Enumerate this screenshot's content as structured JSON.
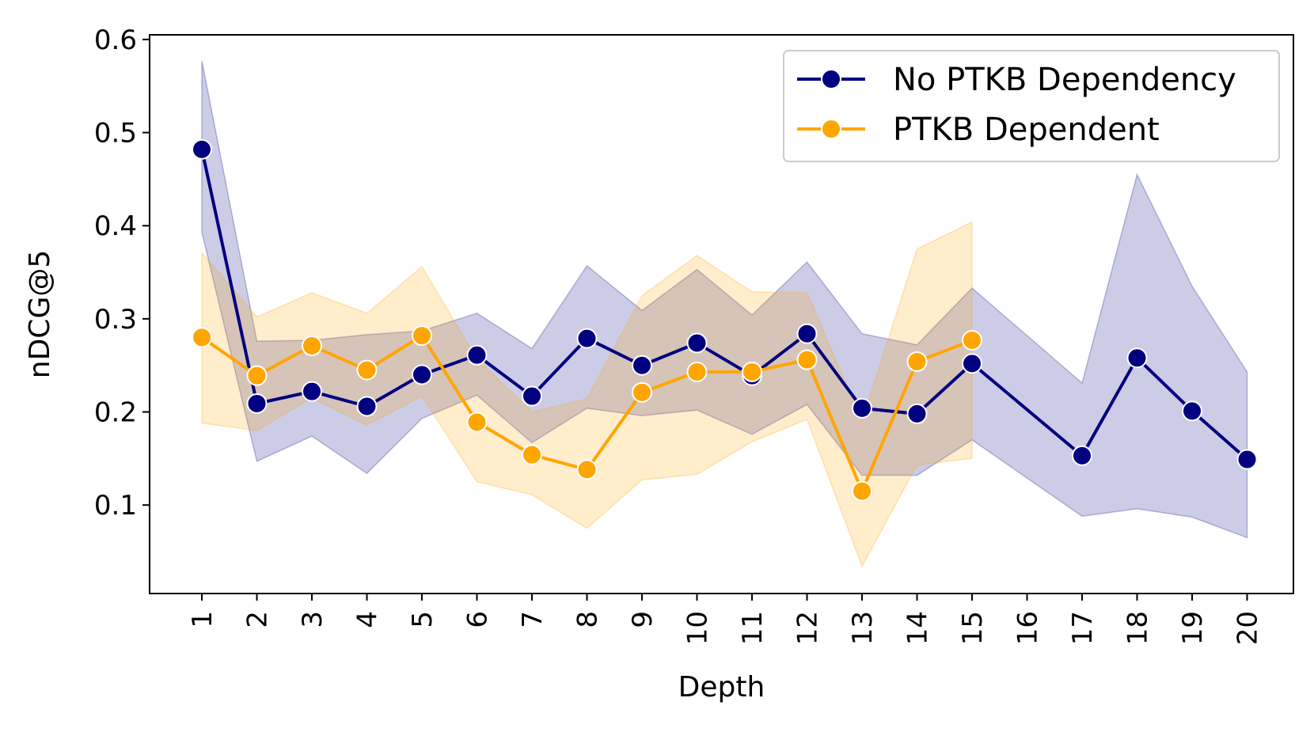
{
  "chart_data": {
    "type": "line",
    "title": "",
    "xlabel": "Depth",
    "ylabel": "nDCG@5",
    "categories": [
      "1",
      "2",
      "3",
      "4",
      "5",
      "6",
      "7",
      "8",
      "9",
      "10",
      "11",
      "12",
      "13",
      "14",
      "15",
      "16",
      "17",
      "18",
      "19",
      "20"
    ],
    "ylim": [
      0.005,
      0.605
    ],
    "yticks": [
      0.1,
      0.2,
      0.3,
      0.4,
      0.5,
      0.6
    ],
    "ytick_labels": [
      "0.1",
      "0.2",
      "0.3",
      "0.4",
      "0.5",
      "0.6"
    ],
    "grid": false,
    "legend_position": "top-right",
    "series": [
      {
        "name": "No PTKB Dependency",
        "color": "#000080",
        "x": [
          1,
          2,
          3,
          4,
          5,
          6,
          7,
          8,
          9,
          10,
          11,
          12,
          13,
          14,
          15,
          17,
          18,
          19,
          20
        ],
        "values": [
          0.482,
          0.209,
          0.222,
          0.206,
          0.24,
          0.261,
          0.217,
          0.279,
          0.25,
          0.274,
          0.239,
          0.284,
          0.204,
          0.198,
          0.252,
          0.153,
          0.258,
          0.201,
          0.149
        ],
        "band_x": [
          1,
          2,
          3,
          4,
          5,
          6,
          7,
          8,
          9,
          10,
          11,
          12,
          13,
          14,
          15,
          16,
          17,
          18,
          19,
          20
        ],
        "band_upper": [
          0.577,
          0.276,
          0.277,
          0.283,
          0.287,
          0.306,
          0.268,
          0.357,
          0.309,
          0.353,
          0.304,
          0.361,
          0.284,
          0.272,
          0.333,
          0.282,
          0.231,
          0.455,
          0.335,
          0.243
        ],
        "band_lower": [
          0.393,
          0.147,
          0.174,
          0.134,
          0.193,
          0.218,
          0.167,
          0.204,
          0.196,
          0.202,
          0.176,
          0.208,
          0.132,
          0.132,
          0.17,
          0.129,
          0.088,
          0.096,
          0.087,
          0.065
        ]
      },
      {
        "name": "PTKB Dependent",
        "color": "#FFA500",
        "x": [
          1,
          2,
          3,
          4,
          5,
          6,
          7,
          8,
          9,
          10,
          11,
          12,
          13,
          14,
          15
        ],
        "values": [
          0.28,
          0.239,
          0.271,
          0.245,
          0.282,
          0.189,
          0.154,
          0.138,
          0.221,
          0.243,
          0.243,
          0.256,
          0.115,
          0.254,
          0.277
        ],
        "band_x": [
          1,
          2,
          3,
          4,
          5,
          6,
          7,
          8,
          9,
          10,
          11,
          12,
          13,
          14,
          15
        ],
        "band_upper": [
          0.371,
          0.302,
          0.328,
          0.306,
          0.356,
          0.257,
          0.2,
          0.214,
          0.325,
          0.368,
          0.329,
          0.328,
          0.19,
          0.375,
          0.404
        ],
        "band_lower": [
          0.188,
          0.18,
          0.215,
          0.186,
          0.217,
          0.125,
          0.111,
          0.075,
          0.127,
          0.133,
          0.168,
          0.192,
          0.034,
          0.143,
          0.15
        ]
      }
    ]
  }
}
